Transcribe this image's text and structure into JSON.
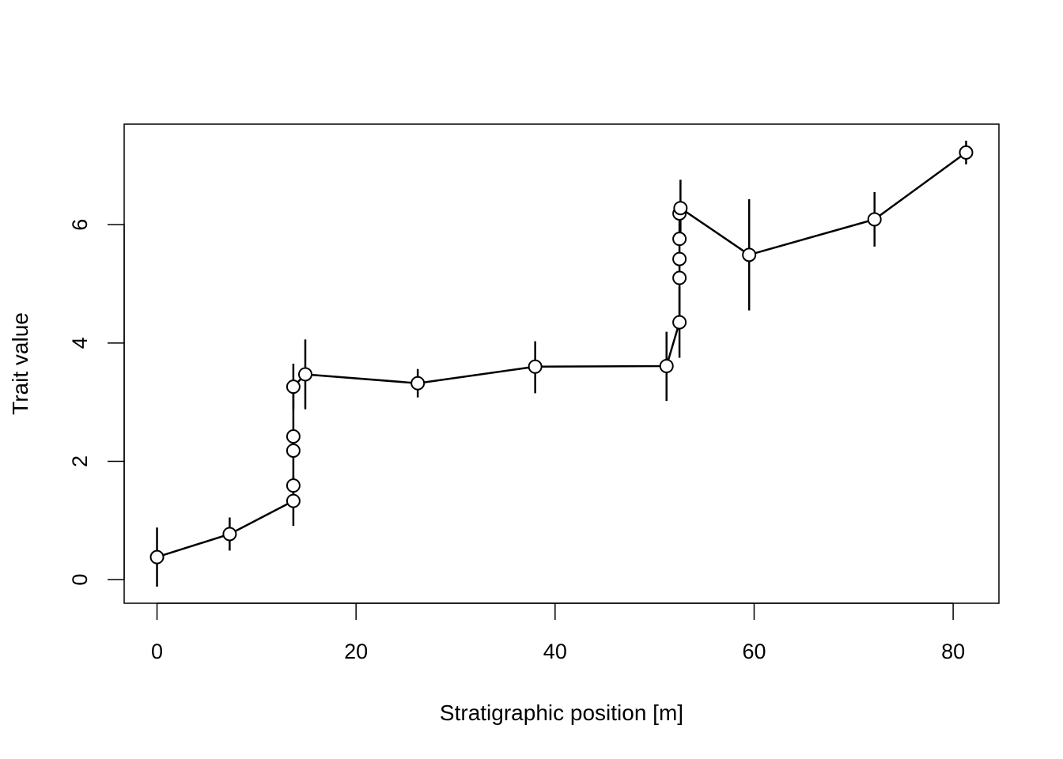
{
  "chart_data": {
    "type": "scatter",
    "title": "",
    "xlabel": "Stratigraphic position [m]",
    "ylabel": "Trait value",
    "xlim": [
      -3.3,
      84.6
    ],
    "ylim": [
      -0.4,
      7.7
    ],
    "xticks": [
      0,
      20,
      40,
      60,
      80
    ],
    "yticks": [
      0,
      2,
      4,
      6
    ],
    "grid": false,
    "legend": "none",
    "line_connected": true,
    "marker": "open-circle",
    "colors": {
      "line": "#000000",
      "marker_fill": "#ffffff",
      "marker_stroke": "#000000"
    },
    "points": [
      {
        "x": 0.0,
        "y": 0.38,
        "lo": -0.12,
        "hi": 0.88
      },
      {
        "x": 7.3,
        "y": 0.77,
        "lo": 0.49,
        "hi": 1.05
      },
      {
        "x": 13.7,
        "y": 1.33,
        "lo": 0.91,
        "hi": 1.75
      },
      {
        "x": 13.7,
        "y": 1.59
      },
      {
        "x": 13.7,
        "y": 2.18
      },
      {
        "x": 13.7,
        "y": 2.42
      },
      {
        "x": 13.7,
        "y": 3.26,
        "lo": 2.87,
        "hi": 3.65
      },
      {
        "x": 14.9,
        "y": 3.47,
        "lo": 2.88,
        "hi": 4.06
      },
      {
        "x": 26.2,
        "y": 3.32,
        "lo": 3.08,
        "hi": 3.56
      },
      {
        "x": 38.0,
        "y": 3.6,
        "lo": 3.15,
        "hi": 4.03
      },
      {
        "x": 51.2,
        "y": 3.61,
        "lo": 3.02,
        "hi": 4.19
      },
      {
        "x": 52.5,
        "y": 4.35,
        "lo": 3.75,
        "hi": 4.95
      },
      {
        "x": 52.5,
        "y": 5.1
      },
      {
        "x": 52.5,
        "y": 5.42
      },
      {
        "x": 52.5,
        "y": 5.76
      },
      {
        "x": 52.5,
        "y": 6.19
      },
      {
        "x": 52.6,
        "y": 6.28,
        "lo": 5.8,
        "hi": 6.76
      },
      {
        "x": 59.5,
        "y": 5.49,
        "lo": 4.55,
        "hi": 6.43
      },
      {
        "x": 72.1,
        "y": 6.09,
        "lo": 5.63,
        "hi": 6.55
      },
      {
        "x": 81.3,
        "y": 7.22,
        "lo": 7.02,
        "hi": 7.42
      }
    ]
  }
}
